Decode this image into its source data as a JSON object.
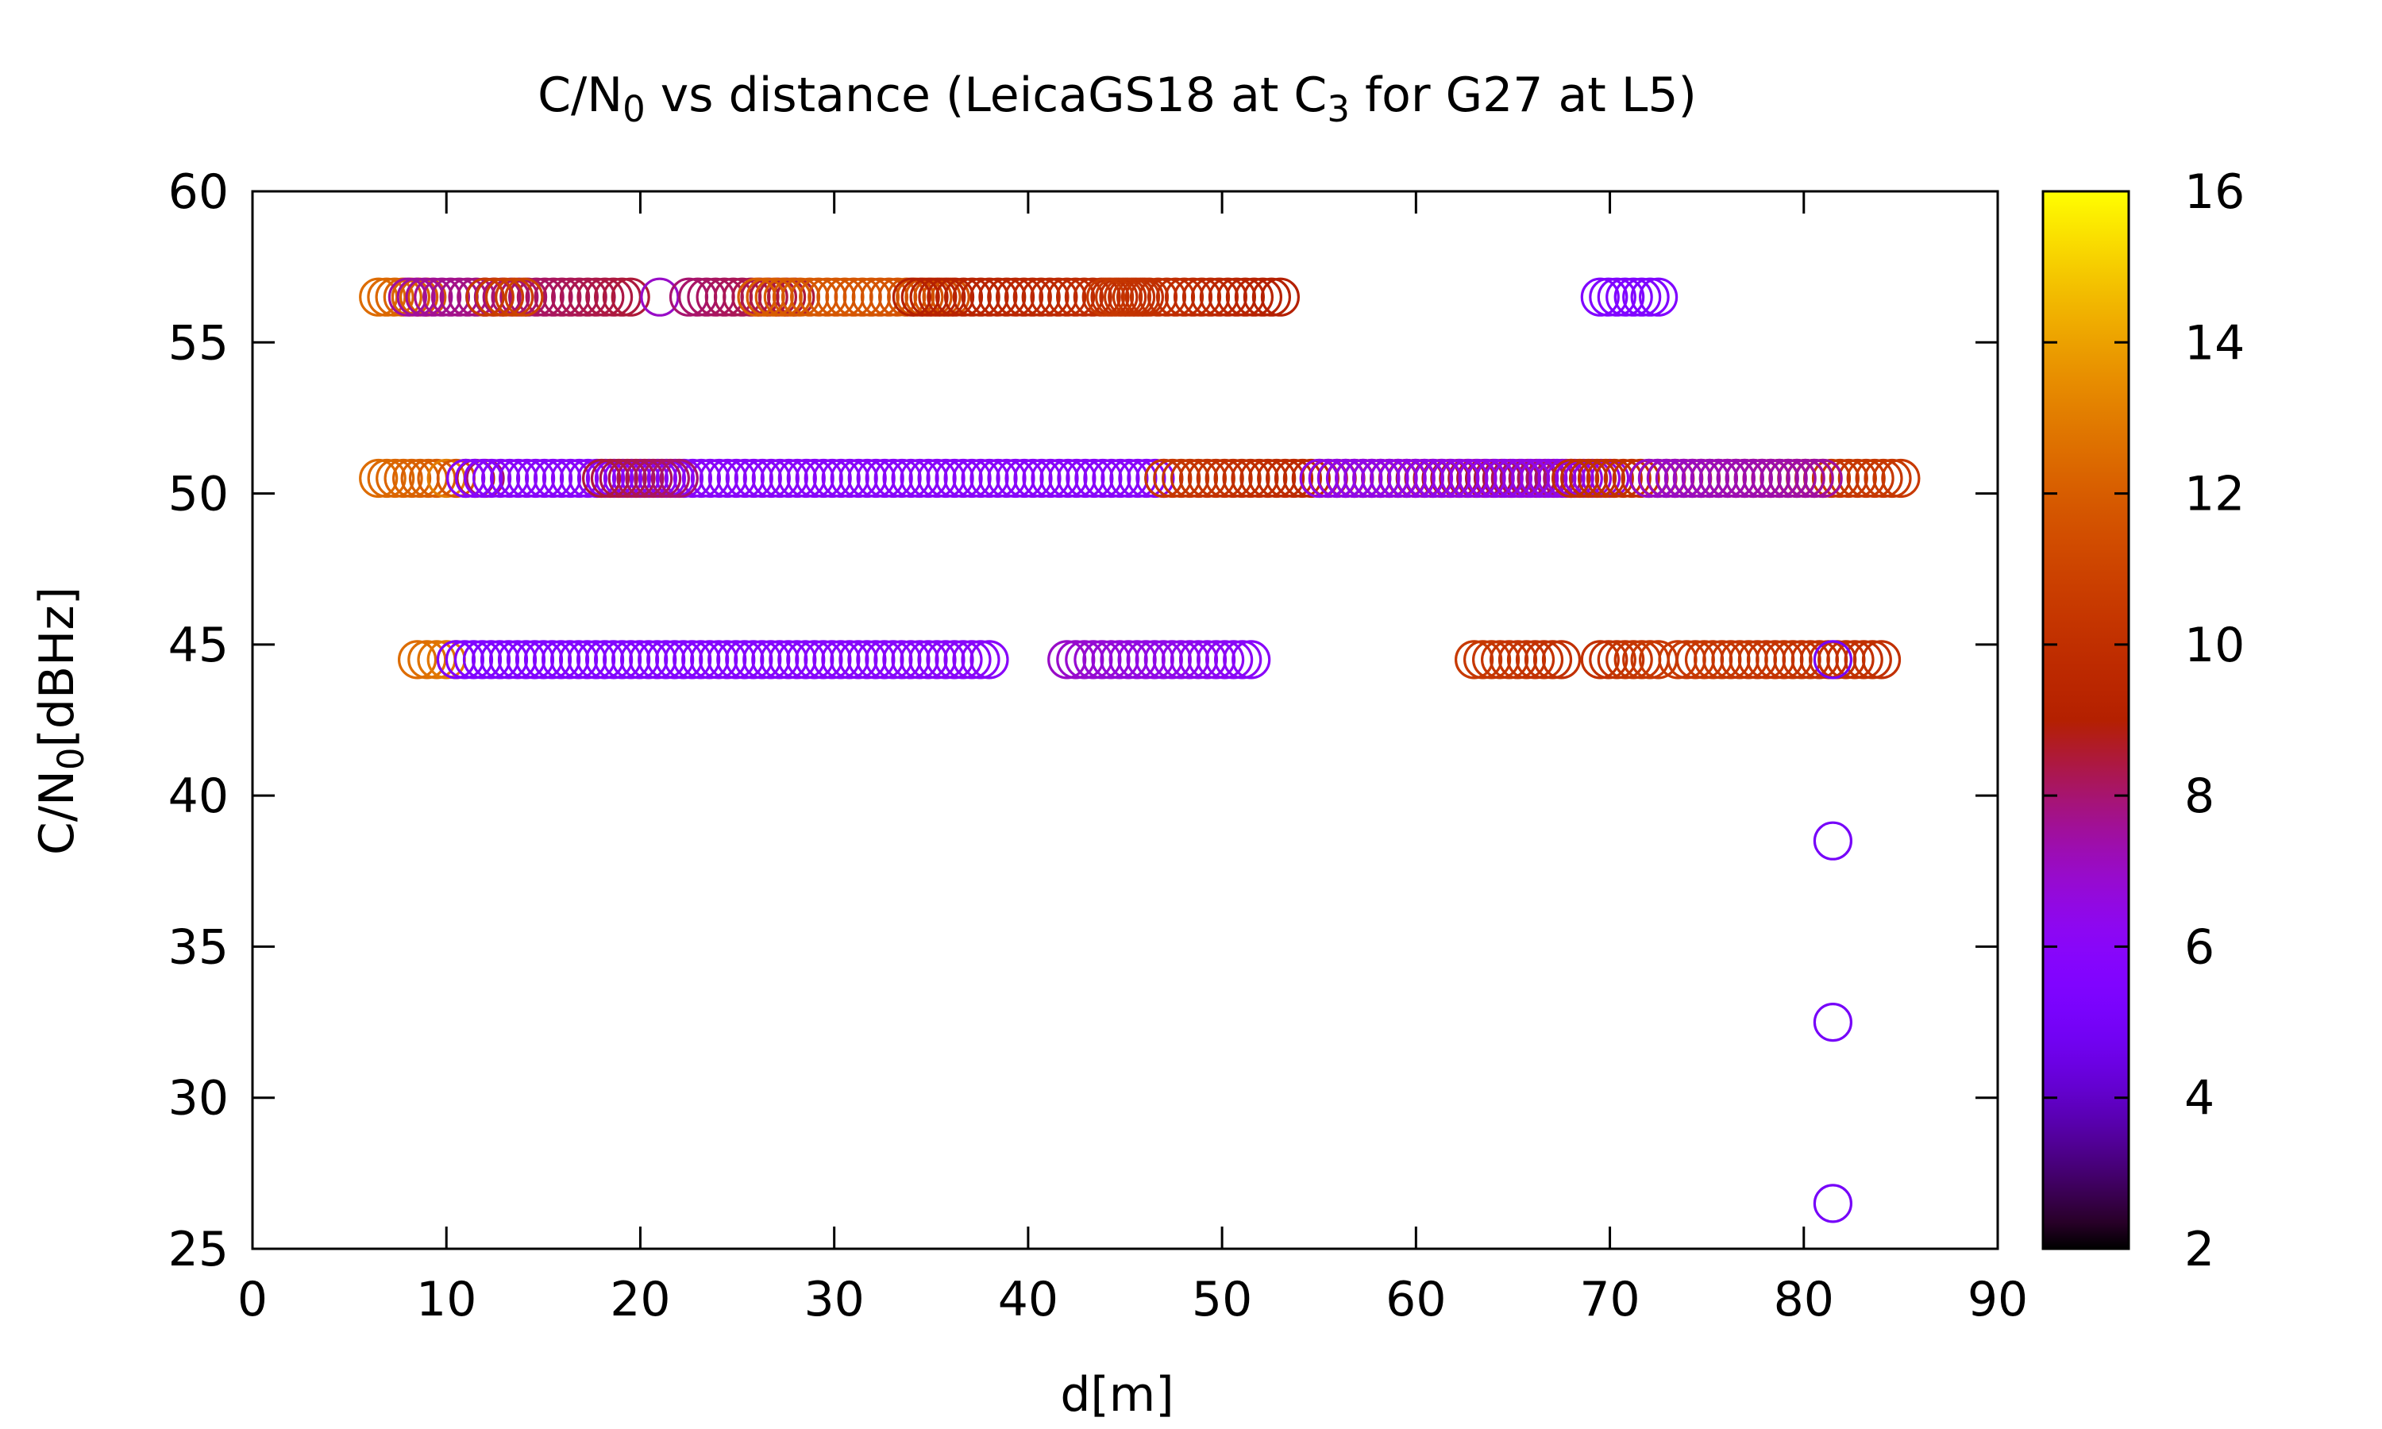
{
  "chart_data": {
    "type": "scatter",
    "title": {
      "parts": [
        {
          "text": "C/N",
          "sub": false
        },
        {
          "text": "0",
          "sub": true
        },
        {
          "text": " vs distance (LeicaGS18 at C",
          "sub": false
        },
        {
          "text": "3",
          "sub": true
        },
        {
          "text": " for G27 at L5)",
          "sub": false
        }
      ]
    },
    "xlabel": "d[m]",
    "ylabel": {
      "parts": [
        {
          "text": "C/N",
          "sub": false
        },
        {
          "text": "0",
          "sub": true
        },
        {
          "text": "[dBHz]",
          "sub": false
        }
      ]
    },
    "xlim": [
      0,
      90
    ],
    "ylim": [
      25,
      60
    ],
    "x_ticks": [
      "0",
      "10",
      "20",
      "30",
      "40",
      "50",
      "60",
      "70",
      "80",
      "90"
    ],
    "y_ticks": [
      "25",
      "30",
      "35",
      "40",
      "45",
      "50",
      "55",
      "60"
    ],
    "grid": false,
    "legend": "none",
    "marker": "open-circle",
    "colorbar": {
      "range": [
        2,
        16
      ],
      "ticks": [
        "2",
        "4",
        "6",
        "8",
        "10",
        "12",
        "14",
        "16"
      ],
      "palette": "black-blue-purple-red-orange-yellow"
    },
    "segments": [
      {
        "y": 56.5,
        "x_start": 6.5,
        "x_end": 9.0,
        "c_start": 12.5,
        "c_end": 12.0
      },
      {
        "y": 56.5,
        "x_start": 8.0,
        "x_end": 19.5,
        "c_start": 7.5,
        "c_end": 8.5
      },
      {
        "y": 56.5,
        "x_start": 12.0,
        "x_end": 14.0,
        "c_start": 10.5,
        "c_end": 11.0
      },
      {
        "y": 56.5,
        "x_start": 21.0,
        "x_end": 21.0,
        "c_start": 7.0,
        "c_end": 7.0
      },
      {
        "y": 56.5,
        "x_start": 22.5,
        "x_end": 28.0,
        "c_start": 8.0,
        "c_end": 8.5
      },
      {
        "y": 56.5,
        "x_start": 26.0,
        "x_end": 36.0,
        "c_start": 12.0,
        "c_end": 11.5
      },
      {
        "y": 56.5,
        "x_start": 34.0,
        "x_end": 46.0,
        "c_start": 9.0,
        "c_end": 10.0
      },
      {
        "y": 56.5,
        "x_start": 44.0,
        "x_end": 53.0,
        "c_start": 10.5,
        "c_end": 9.0
      },
      {
        "y": 56.5,
        "x_start": 69.5,
        "x_end": 72.5,
        "c_start": 5.5,
        "c_end": 5.5
      },
      {
        "y": 50.5,
        "x_start": 6.5,
        "x_end": 9.5,
        "c_start": 12.5,
        "c_end": 12.0
      },
      {
        "y": 50.5,
        "x_start": 10.0,
        "x_end": 12.0,
        "c_start": 13.0,
        "c_end": 8.0
      },
      {
        "y": 50.5,
        "x_start": 11.0,
        "x_end": 47.0,
        "c_start": 6.0,
        "c_end": 6.0
      },
      {
        "y": 50.5,
        "x_start": 18.0,
        "x_end": 22.0,
        "c_start": 8.5,
        "c_end": 8.0
      },
      {
        "y": 50.5,
        "x_start": 47.0,
        "x_end": 68.0,
        "c_start": 10.5,
        "c_end": 8.0
      },
      {
        "y": 50.5,
        "x_start": 55.0,
        "x_end": 70.0,
        "c_start": 6.5,
        "c_end": 6.5
      },
      {
        "y": 50.5,
        "x_start": 68.0,
        "x_end": 85.0,
        "c_start": 10.0,
        "c_end": 10.5
      },
      {
        "y": 50.5,
        "x_start": 72.0,
        "x_end": 81.0,
        "c_start": 7.0,
        "c_end": 7.5
      },
      {
        "y": 44.5,
        "x_start": 8.5,
        "x_end": 10.5,
        "c_start": 12.5,
        "c_end": 13.0
      },
      {
        "y": 44.5,
        "x_start": 10.5,
        "x_end": 38.0,
        "c_start": 5.5,
        "c_end": 6.0
      },
      {
        "y": 44.5,
        "x_start": 42.0,
        "x_end": 51.5,
        "c_start": 7.0,
        "c_end": 6.0
      },
      {
        "y": 44.5,
        "x_start": 63.0,
        "x_end": 67.5,
        "c_start": 10.5,
        "c_end": 10.0
      },
      {
        "y": 44.5,
        "x_start": 69.5,
        "x_end": 72.5,
        "c_start": 10.0,
        "c_end": 10.5
      },
      {
        "y": 44.5,
        "x_start": 73.5,
        "x_end": 84.0,
        "c_start": 10.5,
        "c_end": 10.0
      },
      {
        "y": 44.5,
        "x_start": 81.5,
        "x_end": 81.5,
        "c_start": 5.0,
        "c_end": 5.0
      }
    ],
    "points": [
      {
        "x": 81.5,
        "y": 38.5,
        "c": 5.0
      },
      {
        "x": 81.5,
        "y": 32.5,
        "c": 5.0
      },
      {
        "x": 81.5,
        "y": 26.5,
        "c": 5.0
      }
    ]
  }
}
